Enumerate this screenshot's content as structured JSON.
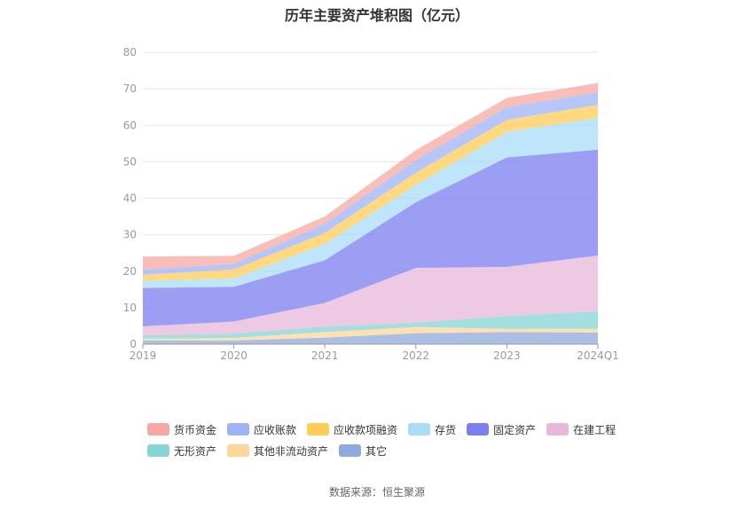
{
  "chart_data": {
    "type": "area",
    "title": "历年主要资产堆积图（亿元）",
    "categories": [
      "2019",
      "2020",
      "2021",
      "2022",
      "2023",
      "2024Q1"
    ],
    "ylim": [
      0,
      80
    ],
    "yticks": [
      "0",
      "10",
      "20",
      "30",
      "40",
      "50",
      "60",
      "70",
      "80"
    ],
    "grid": true,
    "stacked": true,
    "legend_position": "bottom",
    "series": [
      {
        "name": "其它",
        "color": "#8faadc",
        "values": [
          1.0,
          1.0,
          1.8,
          3.0,
          3.3,
          3.2
        ]
      },
      {
        "name": "其他非流动资产",
        "color": "#ffd699",
        "values": [
          0.5,
          0.7,
          1.5,
          1.7,
          0.9,
          1.0
        ]
      },
      {
        "name": "无形资产",
        "color": "#86d4d4",
        "values": [
          0.9,
          1.2,
          1.5,
          1.2,
          3.5,
          4.8
        ]
      },
      {
        "name": "在建工程",
        "color": "#e8b7d9",
        "values": [
          2.5,
          3.3,
          6.5,
          15.0,
          13.5,
          15.3
        ]
      },
      {
        "name": "固定资产",
        "color": "#7b7ef0",
        "values": [
          10.5,
          9.5,
          11.7,
          18.0,
          30.0,
          29.0
        ]
      },
      {
        "name": "存货",
        "color": "#a8dcf7",
        "values": [
          2.0,
          2.3,
          4.5,
          4.8,
          7.0,
          8.8
        ]
      },
      {
        "name": "应收款项融资",
        "color": "#ffcc55",
        "values": [
          1.6,
          2.5,
          3.0,
          3.3,
          3.3,
          3.5
        ]
      },
      {
        "name": "应收账款",
        "color": "#9db3f5",
        "values": [
          1.5,
          1.5,
          2.5,
          3.5,
          3.5,
          3.5
        ]
      },
      {
        "name": "货币资金",
        "color": "#f7a8a0",
        "values": [
          3.5,
          2.2,
          2.0,
          2.7,
          2.5,
          2.5
        ]
      }
    ]
  },
  "legend": {
    "row1": [
      "货币资金",
      "应收账款",
      "应收款项融资",
      "存货",
      "固定资产",
      "在建工程"
    ],
    "row2": [
      "无形资产",
      "其他非流动资产",
      "其它"
    ],
    "colors": {
      "货币资金": "#f7a8a0",
      "应收账款": "#9db3f5",
      "应收款项融资": "#ffcc55",
      "存货": "#a8dcf7",
      "固定资产": "#7b7ef0",
      "在建工程": "#e8b7d9",
      "无形资产": "#86d4d4",
      "其他非流动资产": "#ffd699",
      "其它": "#8faadc"
    }
  },
  "source": "数据来源：恒生聚源"
}
